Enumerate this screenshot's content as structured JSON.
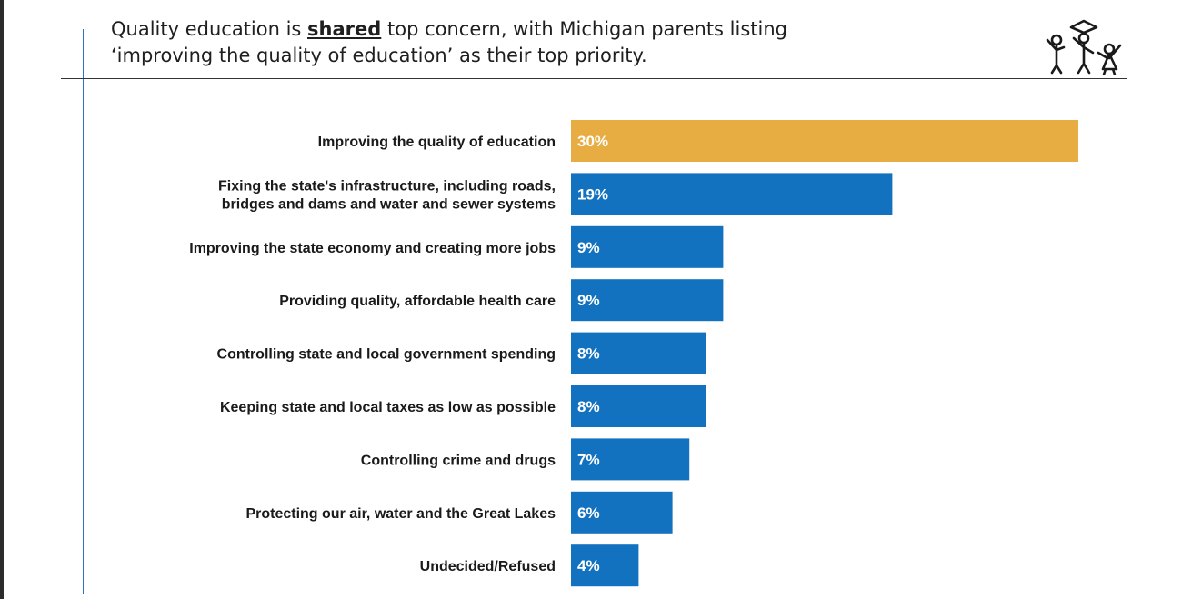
{
  "header": {
    "title_part1": "Quality education is ",
    "title_emphasis": "shared",
    "title_part2": " top concern, with Michigan parents listing",
    "title_line2": "‘improving the quality of education’ as their top priority."
  },
  "logo": {
    "icon": "children-graduation-logo-icon"
  },
  "colors": {
    "highlight": "#E8AD42",
    "bar": "#1372BF"
  },
  "chart_data": {
    "type": "bar",
    "orientation": "horizontal",
    "categories": [
      [
        "Improving the quality of education"
      ],
      [
        "Fixing the state's infrastructure, including roads,",
        "bridges and dams and water and sewer systems"
      ],
      [
        "Improving the state economy and creating more jobs"
      ],
      [
        "Providing quality, affordable health care"
      ],
      [
        "Controlling state and local government spending"
      ],
      [
        "Keeping state and local taxes as low as possible"
      ],
      [
        "Controlling crime and drugs"
      ],
      [
        "Protecting our air, water and the Great Lakes"
      ],
      [
        "Undecided/Refused"
      ]
    ],
    "values": [
      30,
      19,
      9,
      9,
      8,
      8,
      7,
      6,
      4
    ],
    "value_labels": [
      "30%",
      "19%",
      "9%",
      "9%",
      "8%",
      "8%",
      "7%",
      "6%",
      "4%"
    ],
    "highlight_index": 0,
    "xlim": [
      0,
      30
    ],
    "grid": false,
    "legend": "none"
  }
}
